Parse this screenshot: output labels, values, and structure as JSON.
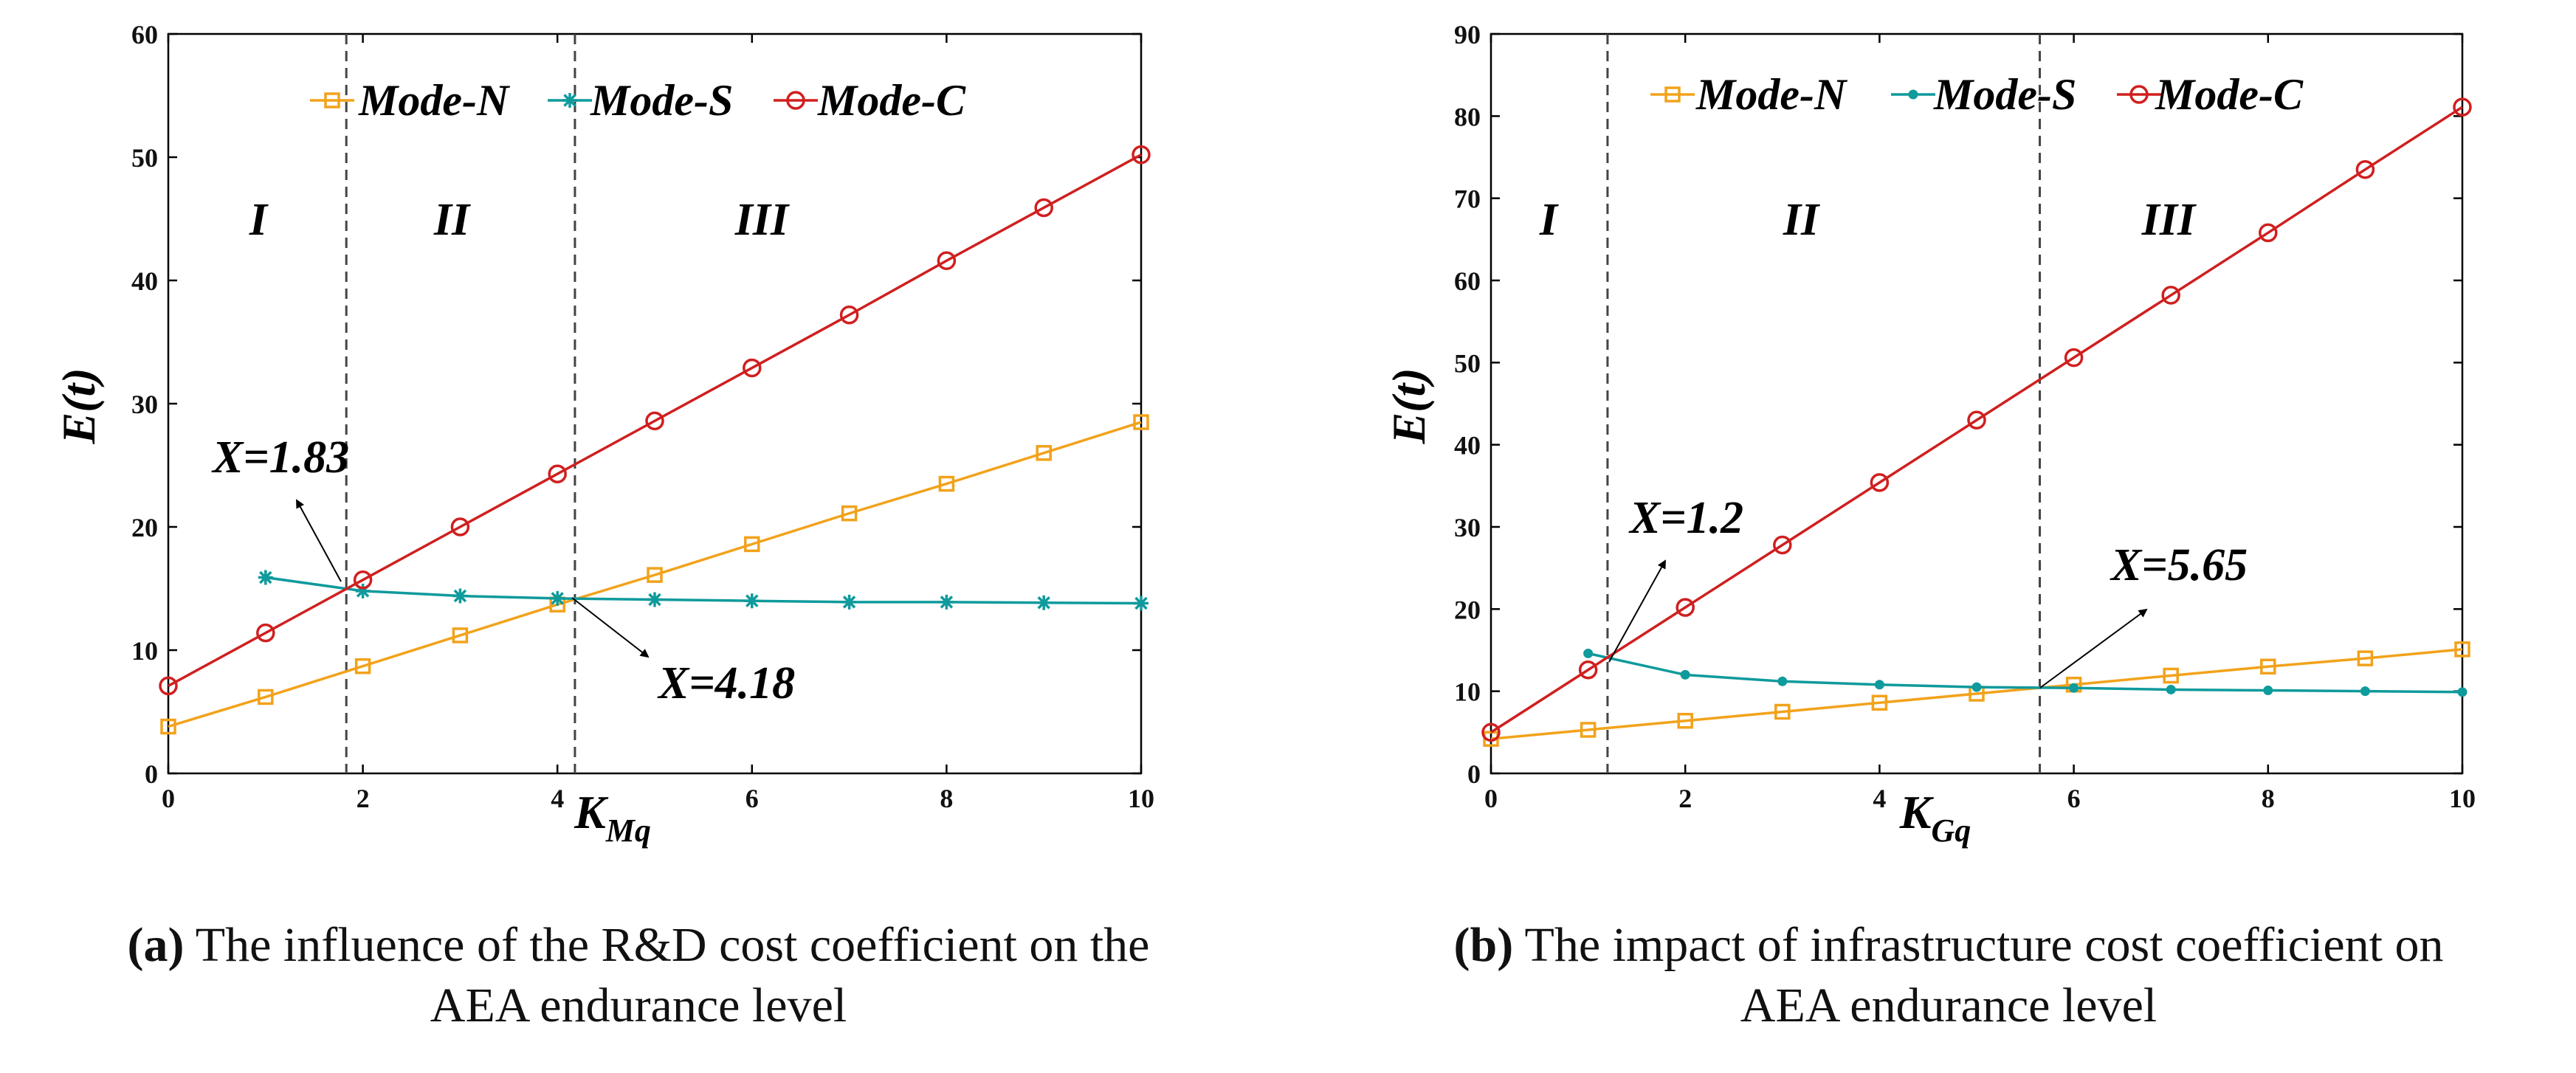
{
  "colors": {
    "mode_n": "#f2a21b",
    "mode_s": "#0f9a9c",
    "mode_c": "#d01f1f",
    "axis": "#000000",
    "threshold": "#555555"
  },
  "chart_data": [
    {
      "type": "line",
      "panel": "a",
      "xlabel_main": "K",
      "xlabel_sub": "Mq",
      "ylabel": "E(t)",
      "xlim": [
        0,
        10
      ],
      "ylim": [
        0,
        60
      ],
      "xticks": [
        "0",
        "2",
        "4",
        "6",
        "8",
        "10"
      ],
      "yticks": [
        "0",
        "10",
        "20",
        "30",
        "40",
        "50",
        "60"
      ],
      "series": [
        {
          "name": "Mode-N",
          "marker": "square",
          "x": [
            0,
            1,
            2,
            3,
            4,
            5,
            6,
            7,
            8,
            9,
            10
          ],
          "values": [
            3.8,
            6.2,
            8.7,
            11.2,
            13.7,
            16.1,
            18.6,
            21.1,
            23.5,
            26.0,
            28.5
          ]
        },
        {
          "name": "Mode-S",
          "marker": "star",
          "x": [
            1,
            2,
            3,
            4,
            5,
            6,
            7,
            8,
            9,
            10
          ],
          "values": [
            15.9,
            14.8,
            14.4,
            14.2,
            14.1,
            14.0,
            13.9,
            13.9,
            13.85,
            13.8
          ]
        },
        {
          "name": "Mode-C",
          "marker": "circle",
          "x": [
            0,
            1,
            2,
            3,
            4,
            5,
            6,
            7,
            8,
            9,
            10
          ],
          "values": [
            7.1,
            11.4,
            15.7,
            20.0,
            24.3,
            28.6,
            32.9,
            37.2,
            41.6,
            45.9,
            50.2
          ]
        }
      ],
      "thresholds": [
        1.83,
        4.18
      ],
      "regions": [
        "I",
        "II",
        "III"
      ],
      "annotations": [
        "X=1.83",
        "X=4.18"
      ],
      "caption_label": "(a)",
      "caption_line1": "The influence of the R&D cost coefficient on the",
      "caption_line2": "AEA endurance level"
    },
    {
      "type": "line",
      "panel": "b",
      "xlabel_main": "K",
      "xlabel_sub": "Gq",
      "ylabel": "E(t)",
      "xlim": [
        0,
        10
      ],
      "ylim": [
        0,
        90
      ],
      "xticks": [
        "0",
        "2",
        "4",
        "6",
        "8",
        "10"
      ],
      "yticks": [
        "0",
        "10",
        "20",
        "30",
        "40",
        "50",
        "60",
        "70",
        "80",
        "90"
      ],
      "series": [
        {
          "name": "Mode-N",
          "marker": "square",
          "x": [
            0,
            1,
            2,
            3,
            4,
            5,
            6,
            7,
            8,
            9,
            10
          ],
          "values": [
            4.2,
            5.3,
            6.4,
            7.5,
            8.6,
            9.7,
            10.8,
            11.9,
            13.0,
            14.0,
            15.1
          ]
        },
        {
          "name": "Mode-S",
          "marker": "dot",
          "x": [
            1,
            2,
            3,
            4,
            5,
            6,
            7,
            8,
            9,
            10
          ],
          "values": [
            14.6,
            12.0,
            11.2,
            10.8,
            10.5,
            10.4,
            10.2,
            10.1,
            10.0,
            9.9
          ]
        },
        {
          "name": "Mode-C",
          "marker": "circle",
          "x": [
            0,
            1,
            2,
            3,
            4,
            5,
            6,
            7,
            8,
            9,
            10
          ],
          "values": [
            5.0,
            12.6,
            20.2,
            27.8,
            35.4,
            43.0,
            50.6,
            58.2,
            65.8,
            73.5,
            81.1
          ]
        }
      ],
      "thresholds": [
        1.2,
        5.65
      ],
      "regions": [
        "I",
        "II",
        "III"
      ],
      "annotations": [
        "X=1.2",
        "X=5.65"
      ],
      "caption_label": "(b)",
      "caption_line1": "The impact of infrastructure cost coefficient on",
      "caption_line2": "AEA endurance level"
    }
  ]
}
